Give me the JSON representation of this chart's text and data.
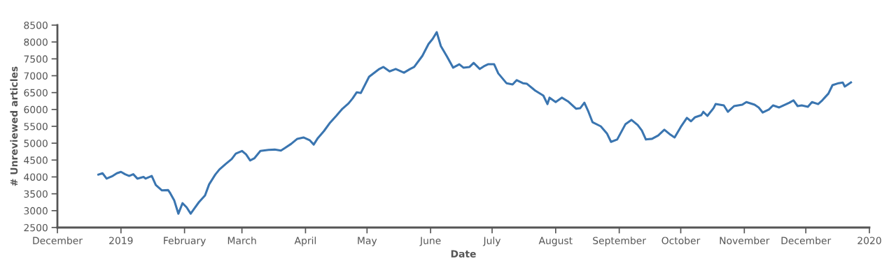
{
  "chart_data": {
    "type": "line",
    "xlabel": "Date",
    "ylabel": "# Unreviewed articles",
    "xlim": [
      "2018-12-01",
      "2020-01-01"
    ],
    "xticks": [
      {
        "value": "2018-12-01",
        "label": "December"
      },
      {
        "value": "2019-01-01",
        "label": "2019"
      },
      {
        "value": "2019-02-01",
        "label": "February"
      },
      {
        "value": "2019-03-01",
        "label": "March"
      },
      {
        "value": "2019-04-01",
        "label": "April"
      },
      {
        "value": "2019-05-01",
        "label": "May"
      },
      {
        "value": "2019-06-01",
        "label": "June"
      },
      {
        "value": "2019-07-01",
        "label": "July"
      },
      {
        "value": "2019-08-01",
        "label": "August"
      },
      {
        "value": "2019-09-01",
        "label": "September"
      },
      {
        "value": "2019-10-01",
        "label": "October"
      },
      {
        "value": "2019-11-01",
        "label": "November"
      },
      {
        "value": "2019-12-01",
        "label": "December"
      },
      {
        "value": "2020-01-01",
        "label": "2020"
      }
    ],
    "ylim": [
      2500,
      8500
    ],
    "yticks": [
      2500,
      3000,
      3500,
      4000,
      4500,
      5000,
      5500,
      6000,
      6500,
      7000,
      7500,
      8000,
      8500
    ],
    "grid": false,
    "marker": "none",
    "line_style": "solid",
    "x": [
      "2018-12-21",
      "2018-12-23",
      "2018-12-25",
      "2018-12-28",
      "2018-12-30",
      "2019-01-01",
      "2019-01-03",
      "2019-01-05",
      "2019-01-07",
      "2019-01-09",
      "2019-01-12",
      "2019-01-13",
      "2019-01-16",
      "2019-01-18",
      "2019-01-21",
      "2019-01-24",
      "2019-01-25",
      "2019-01-27",
      "2019-01-29",
      "2019-01-31",
      "2019-02-02",
      "2019-02-04",
      "2019-02-06",
      "2019-02-08",
      "2019-02-11",
      "2019-02-13",
      "2019-02-16",
      "2019-02-18",
      "2019-02-21",
      "2019-02-24",
      "2019-02-26",
      "2019-03-01",
      "2019-03-03",
      "2019-03-05",
      "2019-03-07",
      "2019-03-10",
      "2019-03-14",
      "2019-03-17",
      "2019-03-20",
      "2019-03-22",
      "2019-03-25",
      "2019-03-28",
      "2019-03-31",
      "2019-04-03",
      "2019-04-05",
      "2019-04-07",
      "2019-04-10",
      "2019-04-13",
      "2019-04-16",
      "2019-04-19",
      "2019-04-22",
      "2019-04-24",
      "2019-04-26",
      "2019-04-28",
      "2019-05-02",
      "2019-05-05",
      "2019-05-07",
      "2019-05-09",
      "2019-05-12",
      "2019-05-15",
      "2019-05-19",
      "2019-05-22",
      "2019-05-24",
      "2019-05-28",
      "2019-05-31",
      "2019-06-02",
      "2019-06-04",
      "2019-06-06",
      "2019-06-09",
      "2019-06-12",
      "2019-06-15",
      "2019-06-17",
      "2019-06-20",
      "2019-06-22",
      "2019-06-25",
      "2019-06-27",
      "2019-06-29",
      "2019-07-02",
      "2019-07-04",
      "2019-07-08",
      "2019-07-11",
      "2019-07-13",
      "2019-07-16",
      "2019-07-18",
      "2019-07-22",
      "2019-07-26",
      "2019-07-28",
      "2019-07-29",
      "2019-08-01",
      "2019-08-04",
      "2019-08-07",
      "2019-08-11",
      "2019-08-13",
      "2019-08-15",
      "2019-08-17",
      "2019-08-19",
      "2019-08-23",
      "2019-08-26",
      "2019-08-28",
      "2019-08-31",
      "2019-09-04",
      "2019-09-07",
      "2019-09-10",
      "2019-09-12",
      "2019-09-14",
      "2019-09-17",
      "2019-09-20",
      "2019-09-23",
      "2019-09-26",
      "2019-09-28",
      "2019-10-01",
      "2019-10-04",
      "2019-10-06",
      "2019-10-08",
      "2019-10-11",
      "2019-10-12",
      "2019-10-14",
      "2019-10-17",
      "2019-10-18",
      "2019-10-22",
      "2019-10-24",
      "2019-10-27",
      "2019-10-31",
      "2019-11-02",
      "2019-11-06",
      "2019-11-08",
      "2019-11-10",
      "2019-11-13",
      "2019-11-15",
      "2019-11-18",
      "2019-11-23",
      "2019-11-25",
      "2019-11-27",
      "2019-11-29",
      "2019-12-02",
      "2019-12-04",
      "2019-12-07",
      "2019-12-09",
      "2019-12-12",
      "2019-12-14",
      "2019-12-17",
      "2019-12-19",
      "2019-12-20",
      "2019-12-23"
    ],
    "series": [
      {
        "color": "#3a75b0",
        "values": [
          4070,
          4110,
          3950,
          4030,
          4110,
          4150,
          4080,
          4030,
          4080,
          3950,
          4000,
          3950,
          4030,
          3760,
          3600,
          3610,
          3520,
          3300,
          2910,
          3220,
          3100,
          2910,
          3080,
          3250,
          3450,
          3780,
          4070,
          4220,
          4380,
          4530,
          4690,
          4770,
          4670,
          4490,
          4550,
          4770,
          4800,
          4810,
          4780,
          4860,
          4980,
          5130,
          5170,
          5090,
          4960,
          5150,
          5360,
          5610,
          5810,
          6020,
          6180,
          6330,
          6510,
          6490,
          6970,
          7110,
          7200,
          7260,
          7130,
          7200,
          7090,
          7200,
          7260,
          7590,
          7940,
          8090,
          8290,
          7880,
          7570,
          7240,
          7340,
          7240,
          7260,
          7380,
          7200,
          7280,
          7340,
          7340,
          7070,
          6780,
          6740,
          6870,
          6780,
          6760,
          6560,
          6410,
          6160,
          6350,
          6220,
          6350,
          6240,
          6020,
          6040,
          6200,
          5930,
          5620,
          5500,
          5290,
          5040,
          5110,
          5560,
          5690,
          5540,
          5380,
          5110,
          5130,
          5230,
          5400,
          5250,
          5170,
          5480,
          5750,
          5650,
          5770,
          5830,
          5930,
          5810,
          6040,
          6160,
          6120,
          5930,
          6100,
          6140,
          6220,
          6140,
          6060,
          5910,
          6000,
          6120,
          6060,
          6200,
          6270,
          6100,
          6120,
          6080,
          6220,
          6160,
          6270,
          6470,
          6720,
          6780,
          6800,
          6680,
          6800
        ]
      }
    ]
  }
}
